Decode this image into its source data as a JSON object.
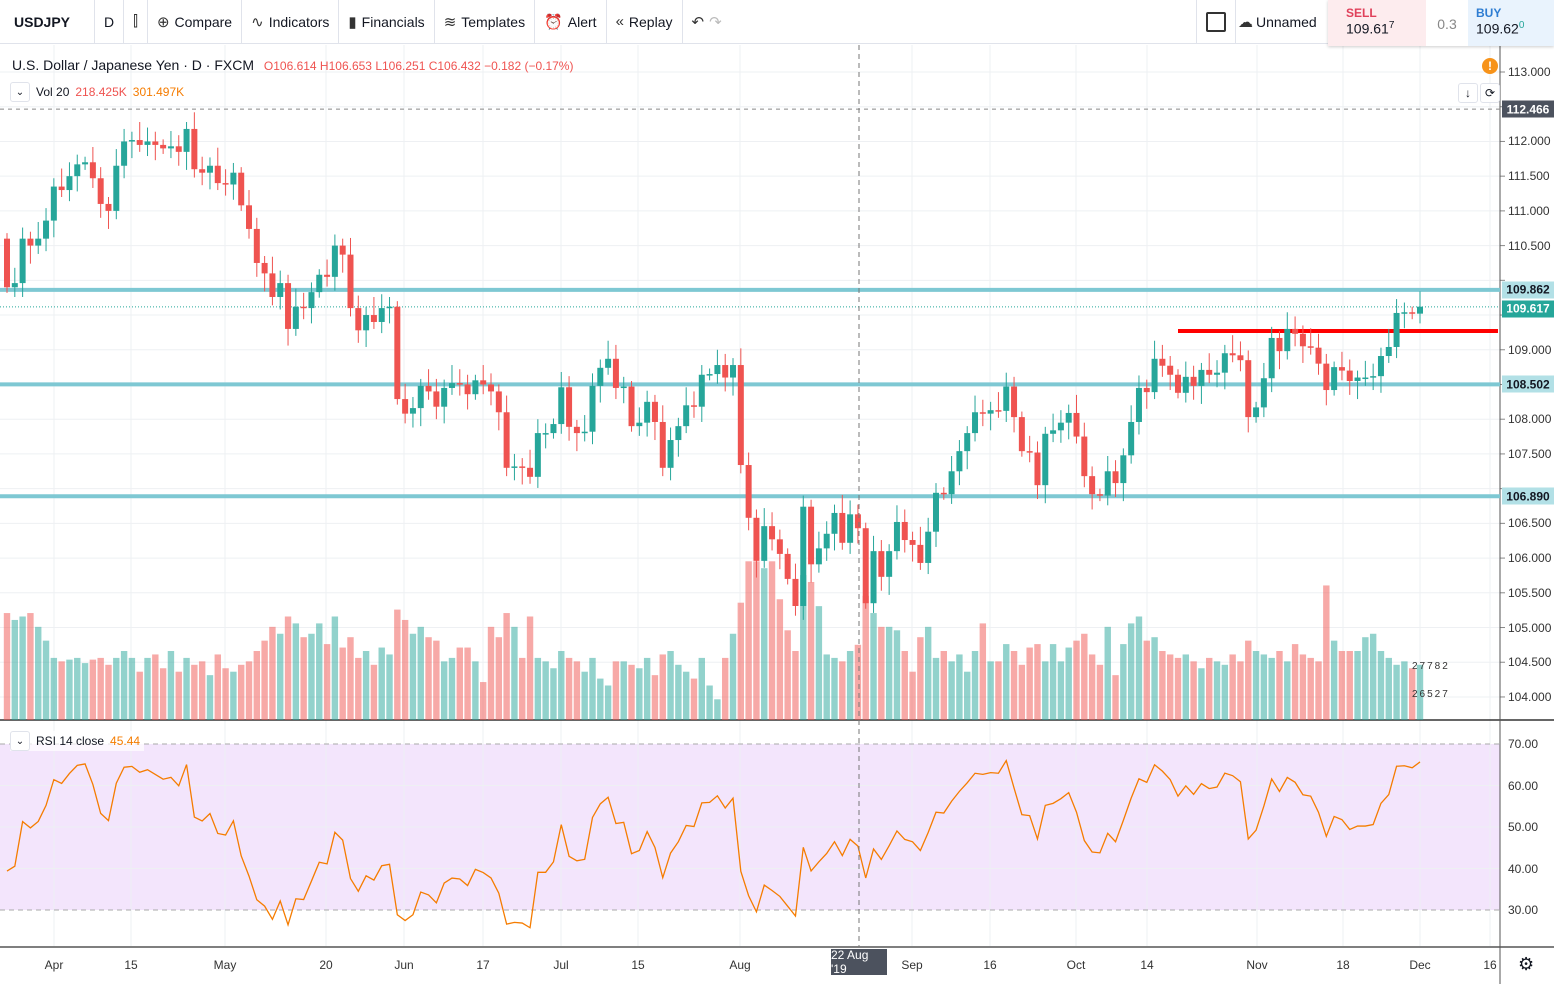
{
  "toolbar": {
    "symbol": "USDJPY",
    "interval": "D",
    "compare": "Compare",
    "indicators": "Indicators",
    "financials": "Financials",
    "templates": "Templates",
    "alert": "Alert",
    "replay": "Replay",
    "layout_name": "Unnamed"
  },
  "trade": {
    "sell_label": "SELL",
    "sell_price": "109.61",
    "sell_sup": "7",
    "spread": "0.3",
    "buy_label": "BUY",
    "buy_price": "109.62",
    "buy_sup": "0"
  },
  "legend": {
    "title": "U.S. Dollar / Japanese Yen · D · FXCM",
    "ohlc": "O106.614  H106.653  L106.251  C106.432  −0.182 (−0.17%)",
    "vol_label": "Vol 20",
    "vol_value": "218.425K",
    "vol_ma": "301.497K",
    "rsi_label": "RSI 14 close",
    "rsi_value": "45.44"
  },
  "watermark": {
    "line1": "27782",
    "line2": "26527"
  },
  "crosshair_date": "22 Aug '19",
  "colors": {
    "up": "#26a69a",
    "down": "#ef5350",
    "level": "#7ec8d3",
    "resistance": "#ff0000",
    "rsi": "#f57c00",
    "rsi_band": "#f3e5fc"
  },
  "chart_data": {
    "type": "candlestick",
    "symbol": "USDJPY",
    "ylim": [
      103.7,
      113.3
    ],
    "y_ticks": [
      "113.000",
      "112.500",
      "112.000",
      "111.500",
      "111.000",
      "110.500",
      "110.000",
      "109.500",
      "109.000",
      "108.500",
      "108.000",
      "107.500",
      "107.000",
      "106.500",
      "106.000",
      "105.500",
      "105.000",
      "104.500",
      "104.000"
    ],
    "x_ticks": [
      "Apr",
      "15",
      "May",
      "20",
      "Jun",
      "17",
      "Jul",
      "15",
      "Aug",
      "Sep",
      "16",
      "Oct",
      "14",
      "Nov",
      "18",
      "Dec",
      "16"
    ],
    "first_open": 110.6,
    "close": [
      109.9,
      109.96,
      110.6,
      110.5,
      110.6,
      110.86,
      111.35,
      111.3,
      111.5,
      111.67,
      111.7,
      111.47,
      111.1,
      111.0,
      111.65,
      112.0,
      112.02,
      111.95,
      112.0,
      111.95,
      111.9,
      111.93,
      111.85,
      112.18,
      111.6,
      111.55,
      111.65,
      111.4,
      111.38,
      111.55,
      111.08,
      110.74,
      110.25,
      110.1,
      109.76,
      109.96,
      109.3,
      109.62,
      109.6,
      109.83,
      110.08,
      110.05,
      110.5,
      110.37,
      109.6,
      109.28,
      109.5,
      109.4,
      109.6,
      109.62,
      108.29,
      108.08,
      108.16,
      108.48,
      108.4,
      108.18,
      108.45,
      108.52,
      108.5,
      108.36,
      108.56,
      108.5,
      108.4,
      108.1,
      107.3,
      107.32,
      107.3,
      107.17,
      107.8,
      107.8,
      107.93,
      108.46,
      107.89,
      107.8,
      107.82,
      108.48,
      108.74,
      108.87,
      108.45,
      108.47,
      107.9,
      107.95,
      108.25,
      107.96,
      107.3,
      107.7,
      107.9,
      108.2,
      108.18,
      108.64,
      108.65,
      108.78,
      108.6,
      108.78,
      107.34,
      106.58,
      105.96,
      106.46,
      106.27,
      106.06,
      105.7,
      105.31,
      106.74,
      105.91,
      106.14,
      106.35,
      106.65,
      106.22,
      106.63,
      106.43,
      105.35,
      106.1,
      105.73,
      106.1,
      106.52,
      106.26,
      106.19,
      105.93,
      106.38,
      106.94,
      106.92,
      107.25,
      107.54,
      107.8,
      108.1,
      108.08,
      108.13,
      108.12,
      108.47,
      108.03,
      107.54,
      107.52,
      107.05,
      107.79,
      107.84,
      107.95,
      108.09,
      107.75,
      107.18,
      106.92,
      106.9,
      107.25,
      107.08,
      107.48,
      107.96,
      108.45,
      108.39,
      108.87,
      108.77,
      108.64,
      108.38,
      108.61,
      108.48,
      108.71,
      108.64,
      108.67,
      108.95,
      108.92,
      108.85,
      108.03,
      108.17,
      108.59,
      109.17,
      108.98,
      109.3,
      109.23,
      109.05,
      109.03,
      108.8,
      108.42,
      108.75,
      108.7,
      108.55,
      108.6,
      108.6,
      108.62,
      108.91,
      109.04,
      109.53,
      109.54,
      109.52,
      109.62
    ],
    "volume_k": [
      310,
      290,
      300,
      310,
      270,
      230,
      180,
      170,
      175,
      180,
      165,
      175,
      180,
      160,
      180,
      200,
      180,
      140,
      180,
      190,
      150,
      200,
      140,
      180,
      160,
      170,
      130,
      190,
      150,
      140,
      160,
      170,
      200,
      230,
      270,
      250,
      300,
      280,
      240,
      250,
      280,
      220,
      300,
      210,
      240,
      180,
      200,
      160,
      210,
      190,
      320,
      290,
      250,
      270,
      240,
      230,
      170,
      180,
      210,
      210,
      170,
      110,
      270,
      240,
      310,
      270,
      180,
      300,
      180,
      170,
      150,
      200,
      180,
      170,
      140,
      180,
      120,
      100,
      170,
      170,
      160,
      150,
      180,
      130,
      190,
      200,
      160,
      140,
      120,
      180,
      100,
      60,
      180,
      250,
      340,
      460,
      460,
      440,
      460,
      350,
      260,
      200,
      420,
      400,
      330,
      190,
      180,
      170,
      200,
      218,
      360,
      310,
      270,
      270,
      260,
      200,
      140,
      240,
      270,
      180,
      200,
      170,
      190,
      140,
      200,
      280,
      170,
      170,
      220,
      200,
      160,
      210,
      220,
      170,
      220,
      170,
      210,
      230,
      250,
      190,
      160,
      270,
      130,
      220,
      280,
      300,
      230,
      240,
      200,
      190,
      180,
      190,
      170,
      150,
      180,
      170,
      160,
      190,
      170,
      230,
      200,
      190,
      180,
      200,
      170,
      220,
      190,
      180,
      170,
      390,
      230,
      200,
      200,
      200,
      240,
      250,
      200,
      180,
      160,
      170,
      150,
      160
    ],
    "horizontal_levels": [
      {
        "price": 109.862,
        "label": "109.862",
        "style": "level"
      },
      {
        "price": 108.502,
        "label": "108.502",
        "style": "level"
      },
      {
        "price": 106.89,
        "label": "106.890",
        "style": "level"
      }
    ],
    "current_price": {
      "price": 109.617,
      "label": "109.617"
    },
    "crosshair_price": {
      "price": 112.466,
      "label": "112.466"
    },
    "resistance_line": {
      "price": 109.27
    },
    "rsi": {
      "period": 14,
      "ylim": [
        20,
        75
      ],
      "y_ticks": [
        "70.00",
        "60.00",
        "50.00",
        "40.00",
        "30.00"
      ],
      "band": [
        30,
        70
      ]
    }
  }
}
